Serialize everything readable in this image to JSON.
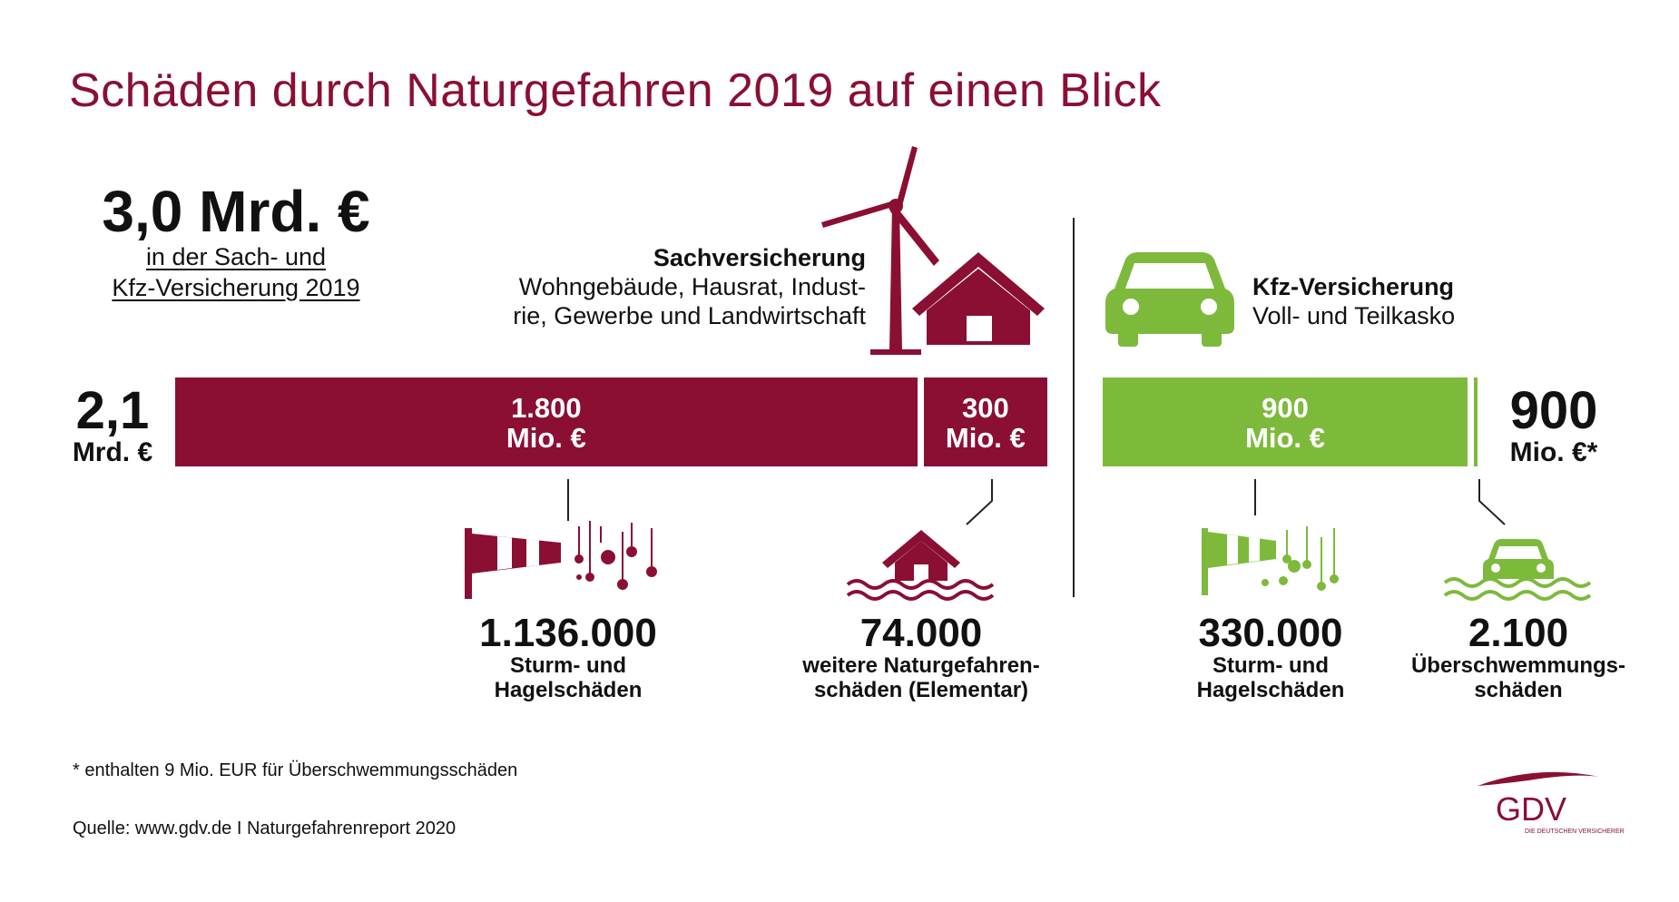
{
  "title": "Schäden durch Naturgefahren 2019 auf einen Blick",
  "total": {
    "value": "3,0 Mrd. €",
    "label_line1": "in der Sach- und",
    "label_line2": "Kfz-Versicherung 2019"
  },
  "sach": {
    "title": "Sachversicherung",
    "desc_line1": "Wohngebäude, Hausrat, Indust-",
    "desc_line2": "rie, Gewerbe und Landwirtschaft",
    "total_value": "2,1",
    "total_unit": "Mrd. €"
  },
  "kfz": {
    "title": "Kfz-Versicherung",
    "desc": "Voll- und Teilkasko",
    "total_value": "900",
    "total_unit": "Mio. €*"
  },
  "chart_data": {
    "type": "bar",
    "orientation": "horizontal-stacked",
    "unit": "Mio. €",
    "segments": [
      {
        "group": "Sachversicherung",
        "value": 1800,
        "label_value": "1.800",
        "label_unit": "Mio. €",
        "color": "#8a0f33"
      },
      {
        "group": "Sachversicherung",
        "value": 300,
        "label_value": "300",
        "label_unit": "Mio. €",
        "color": "#8a0f33"
      },
      {
        "group": "Kfz-Versicherung",
        "value": 900,
        "label_value": "900",
        "label_unit": "Mio. €",
        "color": "#7dba3c"
      },
      {
        "group": "Kfz-Versicherung",
        "value": 9,
        "label_value": "",
        "label_unit": "",
        "color": "#7dba3c"
      }
    ]
  },
  "stats": [
    {
      "value": "1.136.000",
      "label_line1": "Sturm- und",
      "label_line2": "Hagelschäden",
      "icon": "windsock-hail-icon"
    },
    {
      "value": "74.000",
      "label_line1": "weitere Naturgefahren-",
      "label_line2": "schäden (Elementar)",
      "icon": "flooded-house-icon"
    },
    {
      "value": "330.000",
      "label_line1": "Sturm- und",
      "label_line2": "Hagelschäden",
      "icon": "windsock-hail-icon"
    },
    {
      "value": "2.100",
      "label_line1": "Überschwemmungs-",
      "label_line2": "schäden",
      "icon": "flooded-car-icon"
    }
  ],
  "footnote": "* enthalten 9 Mio. EUR für Überschwemmungsschäden",
  "source": "Quelle: www.gdv.de I Naturgefahrenreport 2020",
  "logo": {
    "text": "GDV",
    "tagline": "DIE DEUTSCHEN VERSICHERER"
  },
  "colors": {
    "wine": "#8a0f33",
    "green": "#7dba3c",
    "white": "#ffffff"
  }
}
